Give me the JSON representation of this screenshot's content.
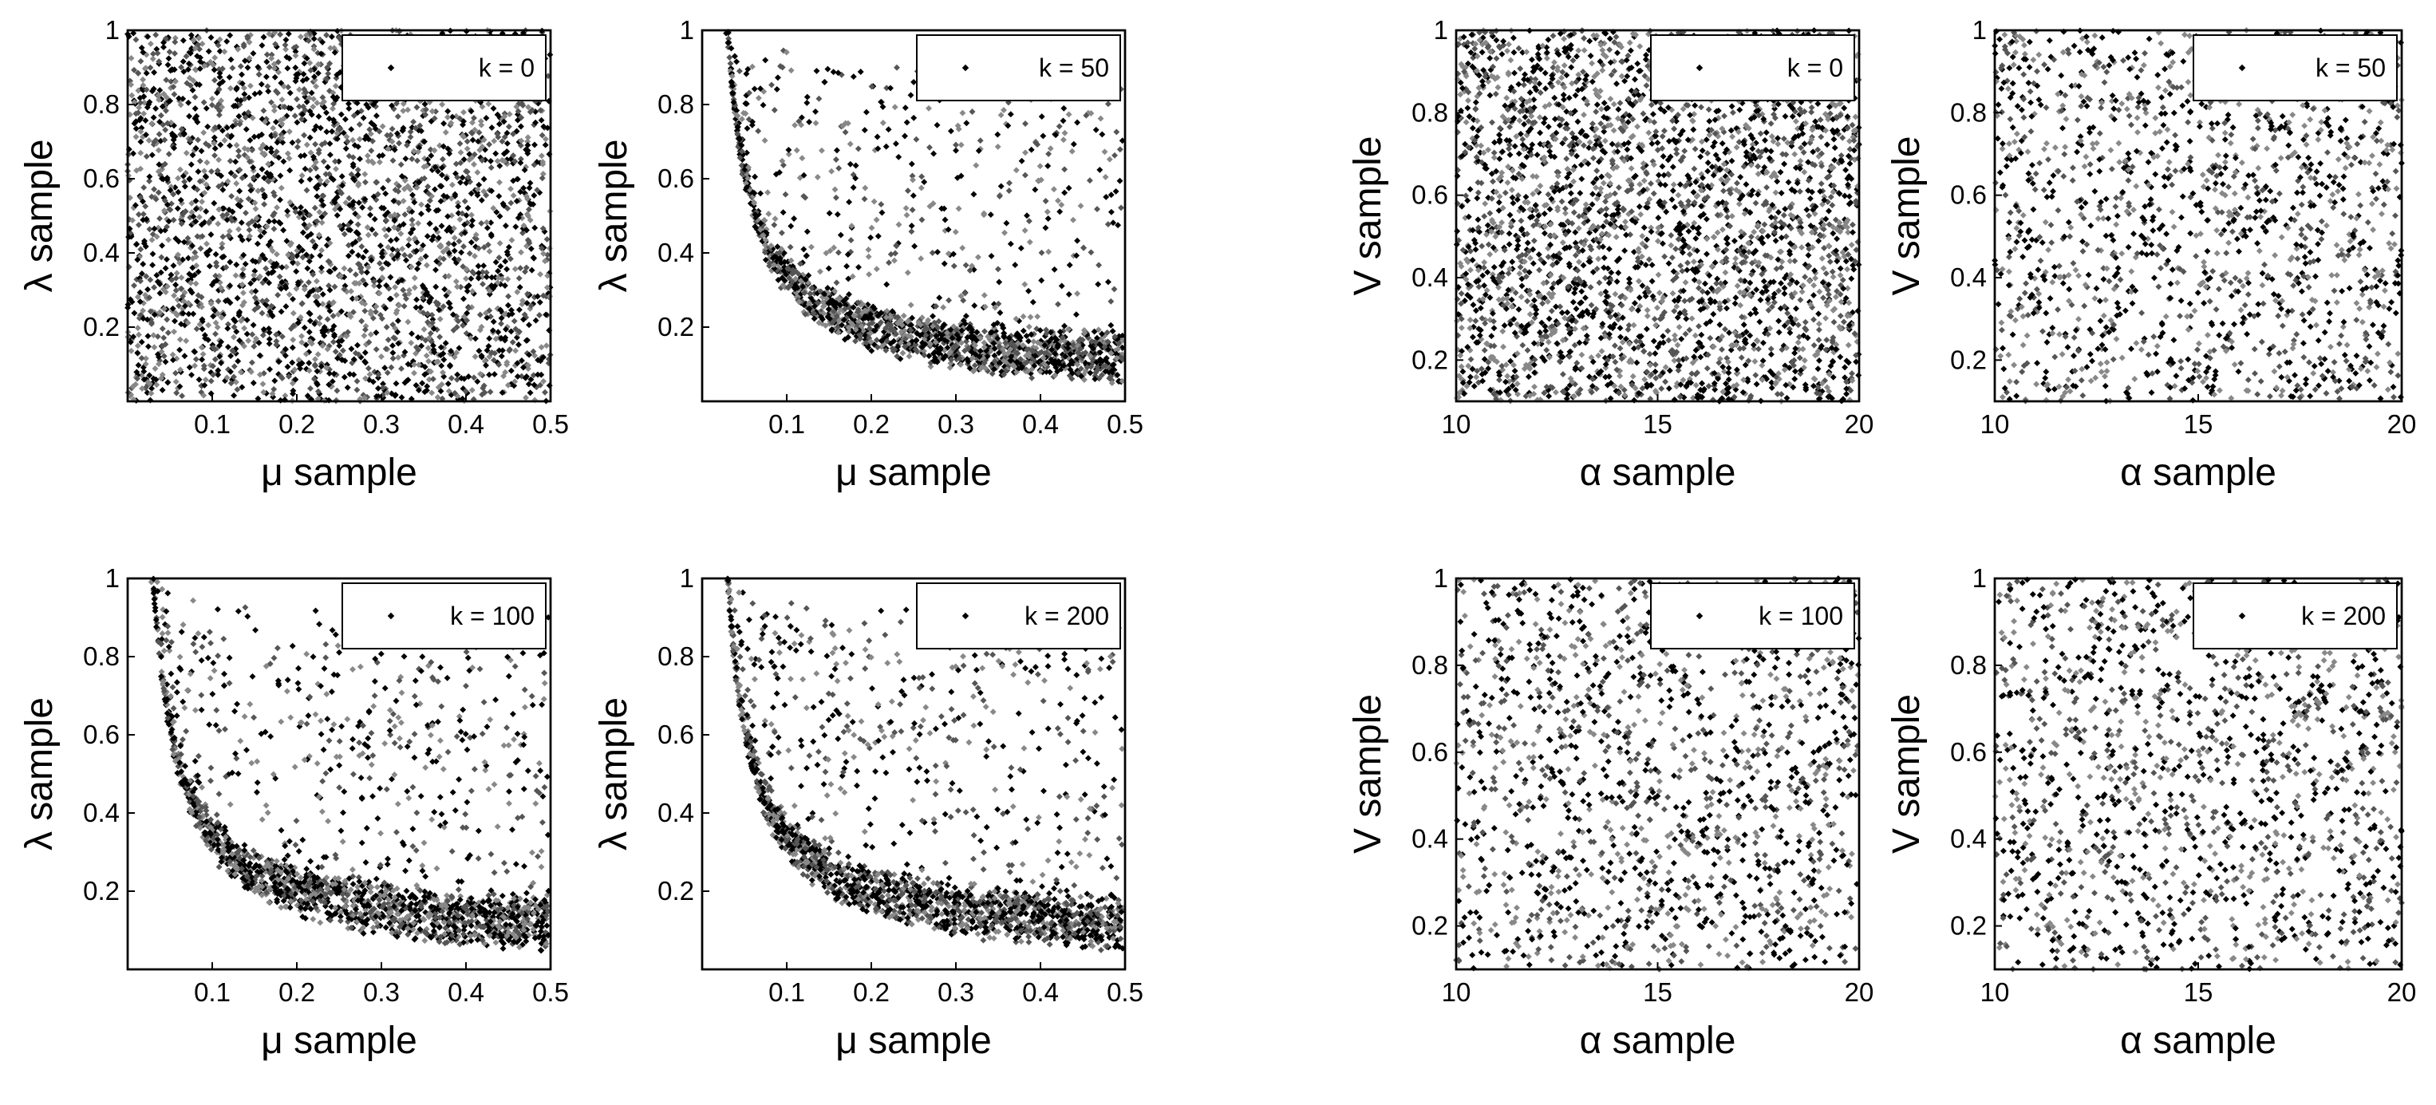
{
  "chart_data": [
    {
      "type": "scatter",
      "legend": "k = 0",
      "xlabel": "μ sample",
      "ylabel": "λ sample",
      "xlim": [
        0,
        0.5
      ],
      "ylim": [
        0,
        1
      ],
      "xticks": [
        "0.1",
        "0.2",
        "0.3",
        "0.4",
        "0.5"
      ],
      "yticks": [
        "0.2",
        "0.4",
        "0.6",
        "0.8",
        "1"
      ],
      "legend_position": "top-right",
      "distribution": "uniform",
      "points": 3000,
      "color": "#000000"
    },
    {
      "type": "scatter",
      "legend": "k = 50",
      "xlabel": "μ sample",
      "ylabel": "λ sample",
      "xlim": [
        0,
        0.5
      ],
      "ylim": [
        0,
        1
      ],
      "xticks": [
        "0.1",
        "0.2",
        "0.3",
        "0.4",
        "0.5"
      ],
      "yticks": [
        "0.2",
        "0.4",
        "0.6",
        "0.8",
        "1"
      ],
      "legend_position": "top-right",
      "distribution": "hyperbolic",
      "points": 1800,
      "color": "#000000"
    },
    {
      "type": "scatter",
      "legend": "k = 0",
      "xlabel": "α sample",
      "ylabel": "V sample",
      "xlim": [
        10,
        20
      ],
      "ylim": [
        0.1,
        1
      ],
      "xticks": [
        "10",
        "15",
        "20"
      ],
      "yticks": [
        "0.2",
        "0.4",
        "0.6",
        "0.8",
        "1"
      ],
      "legend_position": "top-right",
      "distribution": "uniform",
      "points": 3000,
      "color": "#000000"
    },
    {
      "type": "scatter",
      "legend": "k = 50",
      "xlabel": "α sample",
      "ylabel": "V sample",
      "xlim": [
        10,
        20
      ],
      "ylim": [
        0.1,
        1
      ],
      "xticks": [
        "10",
        "15",
        "20"
      ],
      "yticks": [
        "0.2",
        "0.4",
        "0.6",
        "0.8",
        "1"
      ],
      "legend_position": "top-right",
      "distribution": "uniform",
      "points": 1500,
      "color": "#000000"
    },
    {
      "type": "scatter",
      "legend": "k = 100",
      "xlabel": "μ sample",
      "ylabel": "λ sample",
      "xlim": [
        0,
        0.5
      ],
      "ylim": [
        0,
        1
      ],
      "xticks": [
        "0.1",
        "0.2",
        "0.3",
        "0.4",
        "0.5"
      ],
      "yticks": [
        "0.2",
        "0.4",
        "0.6",
        "0.8",
        "1"
      ],
      "legend_position": "top-right",
      "distribution": "hyperbolic",
      "points": 1800,
      "color": "#000000"
    },
    {
      "type": "scatter",
      "legend": "k = 200",
      "xlabel": "μ sample",
      "ylabel": "λ sample",
      "xlim": [
        0,
        0.5
      ],
      "ylim": [
        0,
        1
      ],
      "xticks": [
        "0.1",
        "0.2",
        "0.3",
        "0.4",
        "0.5"
      ],
      "yticks": [
        "0.2",
        "0.4",
        "0.6",
        "0.8",
        "1"
      ],
      "legend_position": "top-right",
      "distribution": "hyperbolic",
      "points": 1800,
      "color": "#000000"
    },
    {
      "type": "scatter",
      "legend": "k = 100",
      "xlabel": "α sample",
      "ylabel": "V sample",
      "xlim": [
        10,
        20
      ],
      "ylim": [
        0.1,
        1
      ],
      "xticks": [
        "10",
        "15",
        "20"
      ],
      "yticks": [
        "0.2",
        "0.4",
        "0.6",
        "0.8",
        "1"
      ],
      "legend_position": "top-right",
      "distribution": "uniform",
      "points": 1500,
      "color": "#000000"
    },
    {
      "type": "scatter",
      "legend": "k = 200",
      "xlabel": "α sample",
      "ylabel": "V sample",
      "xlim": [
        10,
        20
      ],
      "ylim": [
        0.1,
        1
      ],
      "xticks": [
        "10",
        "15",
        "20"
      ],
      "yticks": [
        "0.2",
        "0.4",
        "0.6",
        "0.8",
        "1"
      ],
      "legend_position": "top-right",
      "distribution": "uniform",
      "points": 1500,
      "color": "#000000"
    }
  ]
}
